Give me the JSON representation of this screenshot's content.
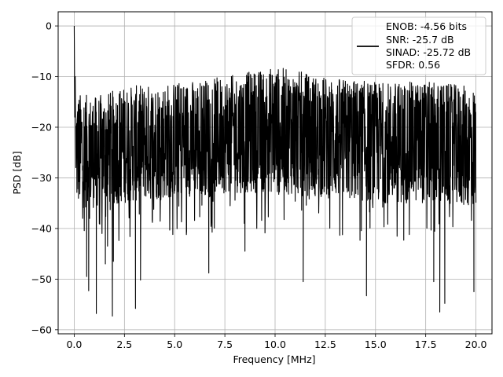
{
  "chart_data": {
    "type": "line",
    "title": "",
    "xlabel": "Frequency [MHz]",
    "ylabel": "PSD [dB]",
    "xlim": [
      -0.8,
      20.8
    ],
    "ylim": [
      -60.8,
      2.8
    ],
    "xticks": [
      0.0,
      2.5,
      5.0,
      7.5,
      10.0,
      12.5,
      15.0,
      17.5,
      20.0
    ],
    "xtick_labels": [
      "0.0",
      "2.5",
      "5.0",
      "7.5",
      "10.0",
      "12.5",
      "15.0",
      "17.5",
      "20.0"
    ],
    "yticks": [
      0,
      -10,
      -20,
      -30,
      -40,
      -50,
      -60
    ],
    "ytick_labels": [
      "0",
      "−10",
      "−20",
      "−30",
      "−40",
      "−50",
      "−60"
    ],
    "grid": true,
    "legend_position": "top-right",
    "series_color": "#000000",
    "legend": {
      "lines": [
        "ENOB: -4.56 bits",
        "SNR: -25.7 dB",
        "SINAD: -25.72 dB",
        "SFDR: 0.56"
      ]
    },
    "series": [
      {
        "x_range": [
          0.0,
          20.0
        ],
        "peak": {
          "x": 0.0,
          "y": 0.0
        },
        "noise_band": {
          "x": [
            0.0,
            1.0,
            2.5,
            5.0,
            7.5,
            10.0,
            12.5,
            15.0,
            17.5,
            20.0
          ],
          "upper": [
            -13,
            -14,
            -12,
            -11,
            -10,
            -8,
            -10,
            -11,
            -11,
            -12
          ],
          "lower": [
            -36,
            -36,
            -35,
            -34,
            -33,
            -33,
            -34,
            -35,
            -35,
            -36
          ]
        },
        "deep_dips": [
          {
            "x": 0.62,
            "y": -49.5
          },
          {
            "x": 0.72,
            "y": -52.3
          },
          {
            "x": 1.1,
            "y": -56.8
          },
          {
            "x": 1.55,
            "y": -47.0
          },
          {
            "x": 1.9,
            "y": -57.3
          },
          {
            "x": 1.95,
            "y": -46.5
          },
          {
            "x": 3.05,
            "y": -55.8
          },
          {
            "x": 3.3,
            "y": -50.2
          },
          {
            "x": 6.7,
            "y": -48.8
          },
          {
            "x": 8.5,
            "y": -44.5
          },
          {
            "x": 11.4,
            "y": -50.5
          },
          {
            "x": 14.55,
            "y": -53.3
          },
          {
            "x": 17.9,
            "y": -50.5
          },
          {
            "x": 18.2,
            "y": -56.5
          },
          {
            "x": 18.45,
            "y": -54.8
          },
          {
            "x": 19.9,
            "y": -52.5
          }
        ]
      }
    ]
  }
}
